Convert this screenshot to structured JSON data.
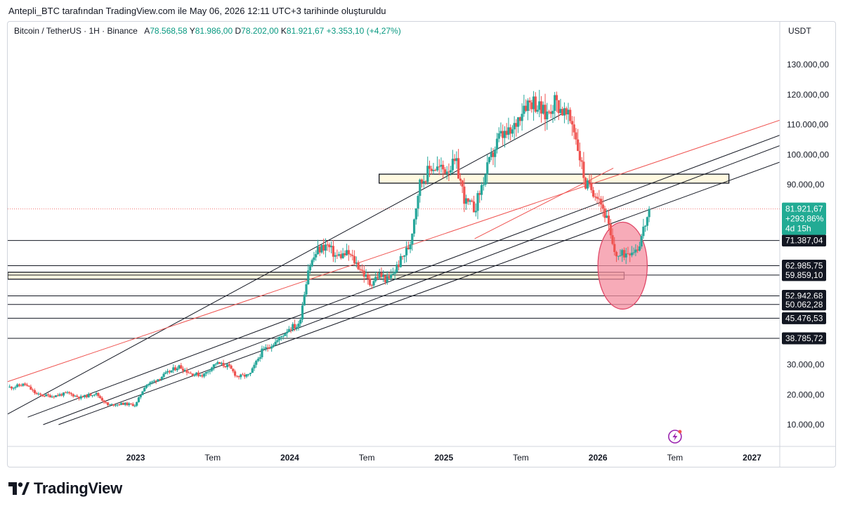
{
  "header": {
    "published_line": "Antepli_BTC tarafından TradingView.com ile May 06, 2026 12:11 UTC+3 tarihinde oluşturuldu"
  },
  "legend": {
    "symbol": "Bitcoin / TetherUS · 1H · Binance",
    "open_label": "A",
    "open_value": "78.568,58",
    "high_label": "Y",
    "high_value": "81.986,00",
    "low_label": "D",
    "low_value": "78.202,00",
    "close_label": "K",
    "close_value": "81.921,67",
    "change": "+3.353,10 (+4,27%)"
  },
  "price_scale": {
    "currency": "USDT",
    "ticks": [
      "130.000,00",
      "120.000,00",
      "110.000,00",
      "100.000,00",
      "90.000,00",
      "30.000,00",
      "20.000,00",
      "10.000,00"
    ],
    "tick_values": [
      130000,
      120000,
      110000,
      100000,
      90000,
      30000,
      20000,
      10000
    ]
  },
  "last_price": {
    "price": "81.921,67",
    "change_pct": "+293,86%",
    "countdown": "4d 15h",
    "value": 81921.67,
    "color": "#22ab94"
  },
  "level_labels": [
    {
      "text": "71.387,04",
      "value": 71387.04
    },
    {
      "text": "62.985,75",
      "value": 62985.75
    },
    {
      "text": "59.859,10",
      "value": 59859.1
    },
    {
      "text": "52.942,68",
      "value": 52942.68
    },
    {
      "text": "50.062,28",
      "value": 50062.28
    },
    {
      "text": "45.476,53",
      "value": 45476.53
    },
    {
      "text": "38.785,72",
      "value": 38785.72
    }
  ],
  "time_axis": [
    "2023",
    "Tem",
    "2024",
    "Tem",
    "2025",
    "Tem",
    "2026",
    "Tem",
    "2027"
  ],
  "brand": {
    "name": "TradingView"
  },
  "colors": {
    "up": "#26a69a",
    "down": "#ef5350",
    "zone": "#fff9e0",
    "ellipse": "#f48fa0",
    "trend_red": "#ef5350"
  },
  "chart_data": {
    "type": "candlestick",
    "x_start": "2022-03",
    "x_end": "2027-03",
    "ylim": [
      5000,
      137000
    ],
    "closes": [
      [
        2022.2,
        22500
      ],
      [
        2022.28,
        23500
      ],
      [
        2022.36,
        20000
      ],
      [
        2022.46,
        19500
      ],
      [
        2022.56,
        20500
      ],
      [
        2022.64,
        19000
      ],
      [
        2022.74,
        20500
      ],
      [
        2022.82,
        16500
      ],
      [
        2022.92,
        17000
      ],
      [
        2023.0,
        16500
      ],
      [
        2023.06,
        23000
      ],
      [
        2023.12,
        24500
      ],
      [
        2023.2,
        27000
      ],
      [
        2023.28,
        29500
      ],
      [
        2023.36,
        27000
      ],
      [
        2023.44,
        26500
      ],
      [
        2023.52,
        30500
      ],
      [
        2023.6,
        29500
      ],
      [
        2023.66,
        26000
      ],
      [
        2023.74,
        26500
      ],
      [
        2023.82,
        34500
      ],
      [
        2023.92,
        38000
      ],
      [
        2024.0,
        42500
      ],
      [
        2024.06,
        43000
      ],
      [
        2024.12,
        62000
      ],
      [
        2024.18,
        68000
      ],
      [
        2024.24,
        70000
      ],
      [
        2024.3,
        66000
      ],
      [
        2024.38,
        67000
      ],
      [
        2024.46,
        62000
      ],
      [
        2024.52,
        57000
      ],
      [
        2024.58,
        60000
      ],
      [
        2024.64,
        58000
      ],
      [
        2024.7,
        63000
      ],
      [
        2024.78,
        70000
      ],
      [
        2024.84,
        90000
      ],
      [
        2024.92,
        96000
      ],
      [
        2025.0,
        95000
      ],
      [
        2025.08,
        97000
      ],
      [
        2025.14,
        84000
      ],
      [
        2025.2,
        82000
      ],
      [
        2025.28,
        95000
      ],
      [
        2025.36,
        106000
      ],
      [
        2025.44,
        107000
      ],
      [
        2025.52,
        117000
      ],
      [
        2025.58,
        118000
      ],
      [
        2025.66,
        113000
      ],
      [
        2025.72,
        118000
      ],
      [
        2025.78,
        114000
      ],
      [
        2025.84,
        110000
      ],
      [
        2025.92,
        90000
      ],
      [
        2026.0,
        87000
      ],
      [
        2026.06,
        78000
      ],
      [
        2026.1,
        68000
      ],
      [
        2026.14,
        66000
      ],
      [
        2026.2,
        68000
      ],
      [
        2026.26,
        69000
      ],
      [
        2026.3,
        76000
      ],
      [
        2026.34,
        81900
      ]
    ],
    "horizontal_levels": [
      71387.04,
      62985.75,
      59859.1,
      52942.68,
      50062.28,
      45476.53,
      38785.72
    ],
    "zones": [
      {
        "x1": 2024.58,
        "x2": 2026.85,
        "y1": 90500,
        "y2": 93500
      },
      {
        "x1": 2022.17,
        "x2": 2026.17,
        "y1": 58500,
        "y2": 60800
      }
    ],
    "trendlines": [
      {
        "x1": 2022.15,
        "y1": 13000,
        "x2": 2025.8,
        "y2": 114500,
        "color": "black"
      },
      {
        "x1": 2022.15,
        "y1": 24000,
        "x2": 2027.18,
        "y2": 111500,
        "color": "red"
      },
      {
        "x1": 2022.3,
        "y1": 12500,
        "x2": 2027.18,
        "y2": 106500,
        "color": "black"
      },
      {
        "x1": 2022.4,
        "y1": 10000,
        "x2": 2027.18,
        "y2": 103000,
        "color": "black"
      },
      {
        "x1": 2022.5,
        "y1": 10000,
        "x2": 2027.18,
        "y2": 97500,
        "color": "black"
      },
      {
        "x1": 2025.2,
        "y1": 72000,
        "x2": 2026.1,
        "y2": 95500,
        "color": "red"
      }
    ],
    "ellipse": {
      "cx": 2026.16,
      "cy": 63000,
      "rx": 0.16,
      "ry": 14500
    }
  }
}
